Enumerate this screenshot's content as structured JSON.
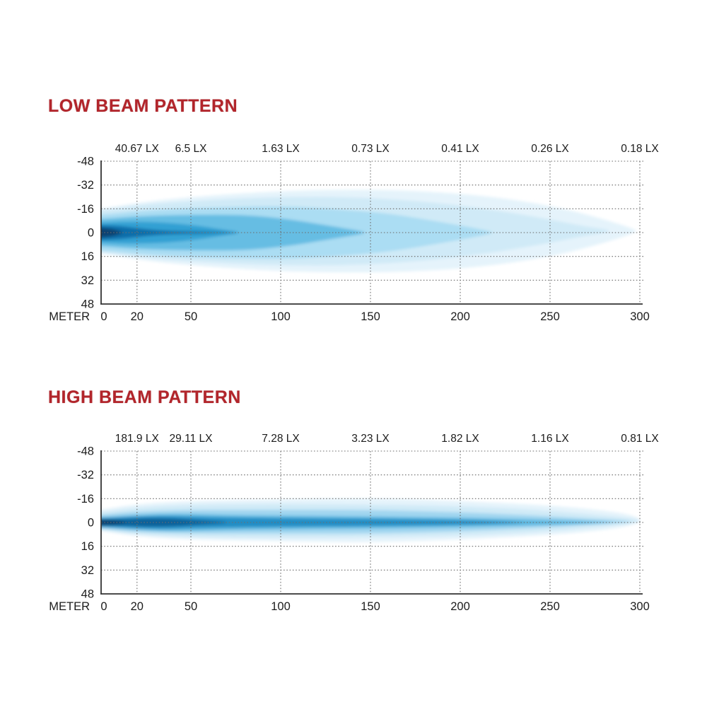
{
  "page": {
    "background": "#ffffff"
  },
  "style": {
    "title_color": "#b2252b",
    "grid_color": "#6e6e6e",
    "axis_color": "#333333",
    "text_color": "#1c1c1c",
    "beam_palette": [
      "#e1f1fa",
      "#cfe9f7",
      "#a9dcf2",
      "#62bae2",
      "#2f9ed2",
      "#0f6ba8",
      "#083f6e"
    ]
  },
  "chart_data": [
    {
      "id": "low-beam",
      "type": "area",
      "title": "LOW BEAM PATTERN",
      "xlabel": "METER",
      "ylabel": "",
      "xlim": [
        0,
        300
      ],
      "ylim": [
        -48,
        48
      ],
      "x_ticks": [
        0,
        20,
        50,
        100,
        150,
        200,
        250,
        300
      ],
      "y_ticks": [
        -48,
        -32,
        -16,
        0,
        16,
        32,
        48
      ],
      "grid": "dotted",
      "legend_position": "none",
      "lux_readings": [
        {
          "meter": 20,
          "label": "40.67 LX"
        },
        {
          "meter": 50,
          "label": "6.5 LX"
        },
        {
          "meter": 100,
          "label": "1.63 LX"
        },
        {
          "meter": 150,
          "label": "0.73 LX"
        },
        {
          "meter": 200,
          "label": "0.41 LX"
        },
        {
          "meter": 250,
          "label": "0.26 LX"
        },
        {
          "meter": 300,
          "label": "0.18 LX"
        }
      ],
      "layers": [
        {
          "name": "outer-glow",
          "color": "#e1f1fa",
          "opacity": 0.85,
          "cy": -1,
          "profile": [
            [
              0,
              15
            ],
            [
              25,
              20
            ],
            [
              60,
              24
            ],
            [
              100,
              27
            ],
            [
              140,
              28
            ],
            [
              180,
              27
            ],
            [
              220,
              23
            ],
            [
              255,
              16
            ],
            [
              280,
              8
            ],
            [
              298,
              1
            ]
          ]
        },
        {
          "name": "pale",
          "color": "#cfe9f7",
          "opacity": 0.95,
          "cy": -1,
          "profile": [
            [
              0,
              14
            ],
            [
              25,
              18
            ],
            [
              60,
              21
            ],
            [
              100,
              23
            ],
            [
              140,
              23
            ],
            [
              180,
              20
            ],
            [
              215,
              15
            ],
            [
              245,
              9
            ],
            [
              270,
              3
            ],
            [
              283,
              0.8
            ]
          ]
        },
        {
          "name": "light",
          "color": "#a9dcf2",
          "opacity": 0.95,
          "cy": 0,
          "profile": [
            [
              0,
              12
            ],
            [
              25,
              15
            ],
            [
              60,
              17
            ],
            [
              100,
              18
            ],
            [
              130,
              16
            ],
            [
              160,
              13
            ],
            [
              190,
              7
            ],
            [
              218,
              0.8
            ]
          ]
        },
        {
          "name": "medium",
          "color": "#62bae2",
          "opacity": 0.95,
          "cy": 0,
          "profile": [
            [
              0,
              9
            ],
            [
              20,
              11
            ],
            [
              50,
              12
            ],
            [
              80,
              12
            ],
            [
              105,
              9
            ],
            [
              125,
              5
            ],
            [
              147,
              0.6
            ]
          ]
        },
        {
          "name": "strong",
          "color": "#2f9ed2",
          "opacity": 0.95,
          "cy": 0,
          "profile": [
            [
              0,
              6.5
            ],
            [
              15,
              7.5
            ],
            [
              35,
              7
            ],
            [
              55,
              4.5
            ],
            [
              68,
              2
            ],
            [
              77,
              0.4
            ]
          ]
        },
        {
          "name": "hot",
          "color": "#0f6ba8",
          "opacity": 0.95,
          "cy": 0,
          "profile": [
            [
              0,
              5
            ],
            [
              10,
              4.5
            ],
            [
              20,
              3
            ],
            [
              35,
              1.2
            ],
            [
              55,
              0.7
            ],
            [
              75,
              0.2
            ]
          ]
        },
        {
          "name": "core",
          "color": "#083f6e",
          "opacity": 0.95,
          "cy": 0,
          "profile": [
            [
              0,
              3.2
            ],
            [
              6,
              2.6
            ],
            [
              12,
              0.3
            ]
          ]
        }
      ]
    },
    {
      "id": "high-beam",
      "type": "area",
      "title": "HIGH BEAM PATTERN",
      "xlabel": "METER",
      "ylabel": "",
      "xlim": [
        0,
        300
      ],
      "ylim": [
        -48,
        48
      ],
      "x_ticks": [
        0,
        20,
        50,
        100,
        150,
        200,
        250,
        300
      ],
      "y_ticks": [
        -48,
        -32,
        -16,
        0,
        16,
        32,
        48
      ],
      "grid": "dotted",
      "legend_position": "none",
      "lux_readings": [
        {
          "meter": 20,
          "label": "181.9 LX"
        },
        {
          "meter": 50,
          "label": "29.11 LX"
        },
        {
          "meter": 100,
          "label": "7.28 LX"
        },
        {
          "meter": 150,
          "label": "3.23 LX"
        },
        {
          "meter": 200,
          "label": "1.82 LX"
        },
        {
          "meter": 250,
          "label": "1.16 LX"
        },
        {
          "meter": 300,
          "label": "0.81 LX"
        }
      ],
      "layers": [
        {
          "name": "outer-glow",
          "color": "#e1f1fa",
          "opacity": 0.85,
          "cy": -1.5,
          "profile": [
            [
              0,
              7
            ],
            [
              20,
              11
            ],
            [
              50,
              13
            ],
            [
              100,
              14
            ],
            [
              150,
              15
            ],
            [
              200,
              13
            ],
            [
              250,
              10
            ],
            [
              285,
              6
            ],
            [
              300,
              2
            ]
          ]
        },
        {
          "name": "pale",
          "color": "#cfe9f7",
          "opacity": 0.95,
          "cy": -1,
          "profile": [
            [
              0,
              6
            ],
            [
              20,
              9
            ],
            [
              50,
              11
            ],
            [
              100,
              11.5
            ],
            [
              150,
              11
            ],
            [
              200,
              10
            ],
            [
              250,
              7
            ],
            [
              285,
              3
            ],
            [
              300,
              1
            ]
          ]
        },
        {
          "name": "light",
          "color": "#9ed5ef",
          "opacity": 0.95,
          "cy": -0.5,
          "profile": [
            [
              0,
              4.5
            ],
            [
              20,
              7
            ],
            [
              50,
              8
            ],
            [
              100,
              8
            ],
            [
              150,
              8
            ],
            [
              200,
              6.5
            ],
            [
              245,
              4
            ],
            [
              280,
              1.5
            ],
            [
              295,
              0.4
            ]
          ]
        },
        {
          "name": "medium",
          "color": "#58b5de",
          "opacity": 0.95,
          "cy": 0,
          "profile": [
            [
              0,
              3.5
            ],
            [
              20,
              5
            ],
            [
              40,
              6
            ],
            [
              70,
              5
            ],
            [
              110,
              4.5
            ],
            [
              160,
              4
            ],
            [
              210,
              3
            ],
            [
              255,
              1.5
            ],
            [
              285,
              0.3
            ]
          ]
        },
        {
          "name": "strong",
          "color": "#1f8ac3",
          "opacity": 0.95,
          "cy": 0,
          "profile": [
            [
              0,
              2.8
            ],
            [
              18,
              4
            ],
            [
              35,
              4.5
            ],
            [
              60,
              3.5
            ],
            [
              100,
              2.8
            ],
            [
              150,
              2.4
            ],
            [
              200,
              1.6
            ],
            [
              235,
              0.3
            ]
          ]
        },
        {
          "name": "hot",
          "color": "#0d5f97",
          "opacity": 0.95,
          "cy": 0,
          "profile": [
            [
              0,
              2.2
            ],
            [
              12,
              2
            ],
            [
              25,
              2.8
            ],
            [
              40,
              2.6
            ],
            [
              55,
              1.4
            ],
            [
              70,
              0.4
            ]
          ]
        },
        {
          "name": "core",
          "color": "#083f6e",
          "opacity": 0.95,
          "cy": 0,
          "profile": [
            [
              0,
              2
            ],
            [
              7,
              1.6
            ],
            [
              14,
              0.3
            ]
          ]
        }
      ]
    }
  ]
}
